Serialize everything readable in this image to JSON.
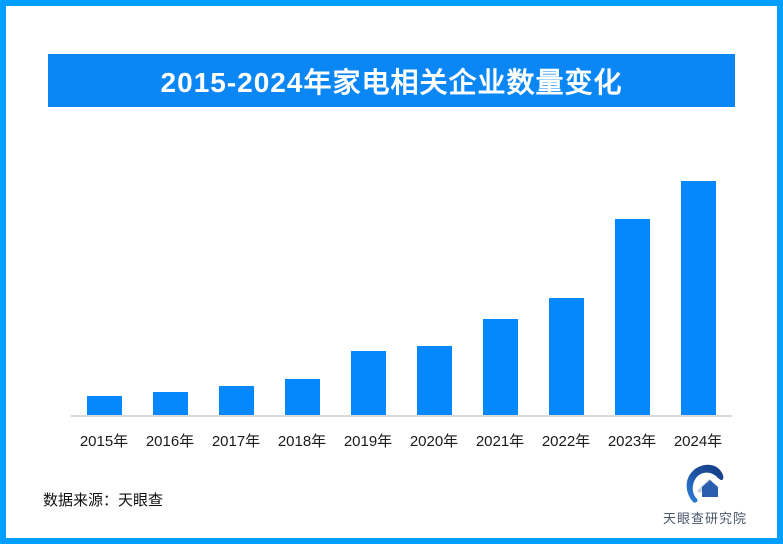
{
  "page": {
    "border_color": "#01A0FF",
    "background": "#FFFFFF"
  },
  "header": {
    "title": "2015-2024年家电相关企业数量变化",
    "bg_color": "#0A87F5",
    "text_color": "#FFFFFF"
  },
  "chart_data": {
    "type": "bar",
    "title": "2015-2024年家电相关企业数量变化",
    "categories": [
      "2015年",
      "2016年",
      "2017年",
      "2018年",
      "2019年",
      "2020年",
      "2021年",
      "2022年",
      "2023年",
      "2024年"
    ],
    "values": [
      19,
      23,
      29,
      36,
      64,
      69,
      96,
      117,
      196,
      234
    ],
    "xlabel": "",
    "ylabel": "",
    "ylim": [
      0,
      250
    ],
    "grid": false,
    "legend": "none",
    "bar_color": "#0588FB",
    "axis_line_color": "#DADADA",
    "value_scale": "relative (no numeric axis or data labels shown in image; values estimated from bar heights)"
  },
  "footer": {
    "source_label": "数据来源：天眼查",
    "logo_text": "天眼查研究院"
  },
  "icons": {
    "tianyancha_eye_icon": "stylized blue eye swoosh with house"
  }
}
